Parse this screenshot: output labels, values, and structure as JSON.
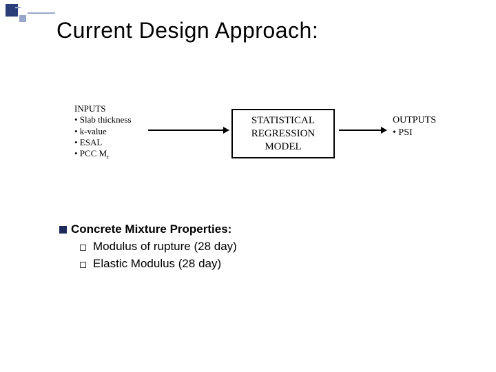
{
  "colors": {
    "text": "#000000",
    "accent_blue_dark": "#2a3e7a",
    "accent_blue_light": "#9aa7cc",
    "box_border": "#000000",
    "arrow": "#000000",
    "bullet_fill": "#1e2a5a",
    "bullet_hollow": "#333333",
    "background": "#ffffff"
  },
  "title": "Current Design Approach:",
  "diagram": {
    "inputs_header": "INPUTS",
    "inputs": [
      "• Slab thickness",
      "• k-value",
      "• ESAL",
      "• PCC Mr"
    ],
    "model_box": "STATISTICAL REGRESSION MODEL",
    "outputs_header": "OUTPUTS",
    "outputs": [
      "• PSI"
    ]
  },
  "concrete": {
    "header": "Concrete Mixture Properties:",
    "items": [
      "Modulus of rupture (28 day)",
      "Elastic Modulus (28 day)"
    ]
  }
}
